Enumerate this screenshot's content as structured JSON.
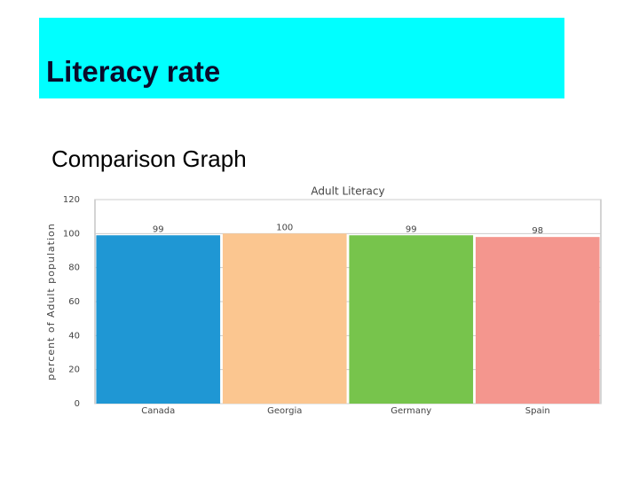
{
  "header": {
    "title": "Literacy rate",
    "subtitle": "Comparison Graph"
  },
  "chart_data": {
    "type": "bar",
    "title": "Adult Literacy",
    "y_label": "percent of Adult population",
    "categories": [
      "Canada",
      "Georgia",
      "Germany",
      "Spain"
    ],
    "values": [
      99,
      100,
      99,
      98
    ],
    "colors": [
      "#1f97d4",
      "#fbc690",
      "#77c44c",
      "#f4968e"
    ],
    "ylim": [
      0,
      120
    ],
    "yticks": [
      0,
      20,
      40,
      60,
      80,
      100,
      120
    ],
    "grid": true
  }
}
